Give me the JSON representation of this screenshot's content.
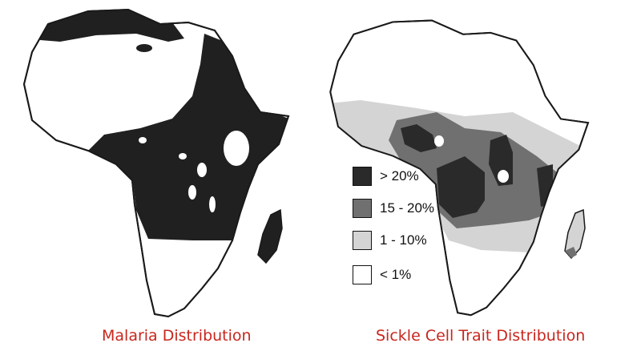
{
  "maps": [
    {
      "caption": "Malaria Distribution"
    },
    {
      "caption": "Sickle Cell Trait Distribution"
    }
  ],
  "legend": {
    "items": [
      {
        "label": "> 20%",
        "color": "#2a2a2a"
      },
      {
        "label": "15 - 20%",
        "color": "#707070"
      },
      {
        "label": "1 - 10%",
        "color": "#d4d4d4"
      },
      {
        "label": "< 1%",
        "color": "#ffffff"
      }
    ]
  },
  "colors": {
    "caption": "#c8261e",
    "malaria_fill": "#202020",
    "outline": "#1a1a1a"
  }
}
